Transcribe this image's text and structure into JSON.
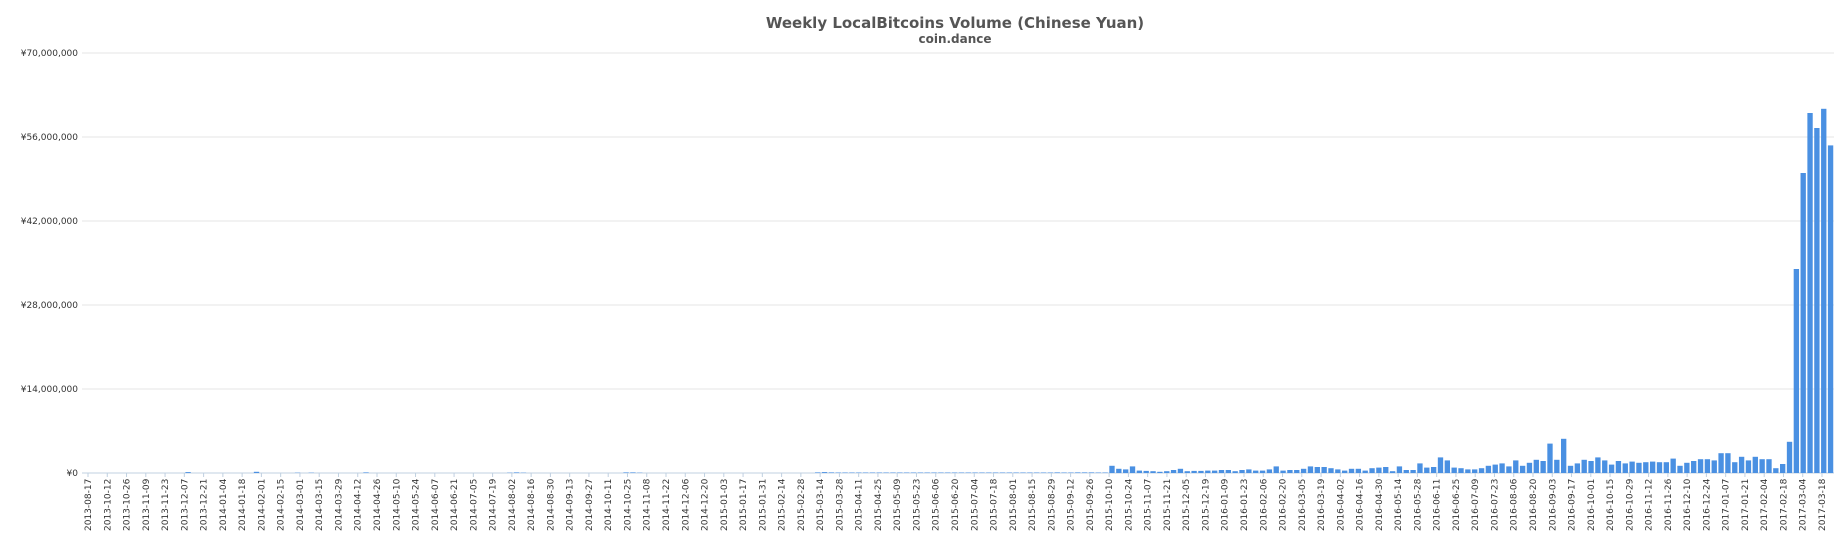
{
  "chart_data": {
    "type": "bar",
    "title": "Weekly LocalBitcoins Volume (Chinese Yuan)",
    "subtitle": "coin.dance",
    "xlabel": "",
    "ylabel": "",
    "ylim": [
      0,
      70000000
    ],
    "y_ticks": [
      0,
      14000000,
      28000000,
      42000000,
      56000000,
      70000000
    ],
    "y_tick_labels": [
      "¥0",
      "¥14,000,000",
      "¥28,000,000",
      "¥42,000,000",
      "¥56,000,000",
      "¥70,000,000"
    ],
    "x_tick_labels": [
      "2013-08-17",
      "2013-10-12",
      "2013-10-26",
      "2013-11-09",
      "2013-11-23",
      "2013-12-07",
      "2013-12-21",
      "2014-01-04",
      "2014-01-18",
      "2014-02-01",
      "2014-02-15",
      "2014-03-01",
      "2014-03-15",
      "2014-03-29",
      "2014-04-12",
      "2014-04-26",
      "2014-05-10",
      "2014-05-24",
      "2014-06-07",
      "2014-06-21",
      "2014-07-05",
      "2014-07-19",
      "2014-08-02",
      "2014-08-16",
      "2014-08-30",
      "2014-09-13",
      "2014-09-27",
      "2014-10-11",
      "2014-10-25",
      "2014-11-08",
      "2014-11-22",
      "2014-12-06",
      "2014-12-20",
      "2015-01-03",
      "2015-01-17",
      "2015-01-31",
      "2015-02-14",
      "2015-02-28",
      "2015-03-14",
      "2015-03-28",
      "2015-04-11",
      "2015-04-25",
      "2015-05-09",
      "2015-05-23",
      "2015-06-06",
      "2015-06-20",
      "2015-07-04",
      "2015-07-18",
      "2015-08-01",
      "2015-08-15",
      "2015-08-29",
      "2015-09-12",
      "2015-09-26",
      "2015-10-10",
      "2015-10-24",
      "2015-11-07",
      "2015-11-21",
      "2015-12-05",
      "2015-12-19",
      "2016-01-09",
      "2016-01-23",
      "2016-02-06",
      "2016-02-20",
      "2016-03-05",
      "2016-03-19",
      "2016-04-02",
      "2016-04-16",
      "2016-04-30",
      "2016-05-14",
      "2016-05-28",
      "2016-06-11",
      "2016-06-25",
      "2016-07-09",
      "2016-07-23",
      "2016-08-06",
      "2016-08-20",
      "2016-09-03",
      "2016-09-17",
      "2016-10-01",
      "2016-10-15",
      "2016-10-29",
      "2016-11-12",
      "2016-11-26",
      "2016-12-10",
      "2016-12-24",
      "2017-01-07",
      "2017-01-21",
      "2017-02-04",
      "2017-02-18",
      "2017-03-04",
      "2017-03-18"
    ],
    "values": [
      0,
      0,
      0,
      0,
      0,
      0,
      0,
      0,
      0,
      0,
      0,
      0,
      0,
      0,
      0,
      150000,
      0,
      0,
      0,
      0,
      0,
      0,
      0,
      0,
      0,
      200000,
      0,
      0,
      0,
      0,
      0,
      50000,
      0,
      50000,
      0,
      0,
      0,
      0,
      0,
      0,
      0,
      100000,
      0,
      0,
      0,
      0,
      0,
      0,
      0,
      0,
      0,
      0,
      0,
      0,
      0,
      0,
      0,
      0,
      0,
      0,
      0,
      0,
      50000,
      100000,
      50000,
      0,
      0,
      0,
      0,
      0,
      0,
      0,
      0,
      0,
      0,
      0,
      0,
      0,
      0,
      100000,
      100000,
      50000,
      0,
      0,
      0,
      0,
      0,
      0,
      0,
      0,
      0,
      0,
      0,
      0,
      0,
      0,
      0,
      0,
      0,
      0,
      0,
      0,
      0,
      0,
      0,
      0,
      0,
      100000,
      150000,
      100000,
      80000,
      80000,
      80000,
      80000,
      80000,
      80000,
      80000,
      80000,
      80000,
      80000,
      80000,
      80000,
      80000,
      80000,
      80000,
      80000,
      80000,
      80000,
      80000,
      80000,
      80000,
      80000,
      80000,
      80000,
      80000,
      80000,
      80000,
      80000,
      80000,
      80000,
      80000,
      80000,
      100000,
      80000,
      80000,
      100000,
      100000,
      100000,
      80000,
      80000,
      1200000,
      700000,
      600000,
      1100000,
      400000,
      350000,
      300000,
      200000,
      300000,
      500000,
      700000,
      300000,
      350000,
      350000,
      400000,
      400000,
      500000,
      500000,
      300000,
      500000,
      600000,
      400000,
      400000,
      600000,
      1100000,
      400000,
      500000,
      500000,
      700000,
      1100000,
      1000000,
      1000000,
      800000,
      600000,
      400000,
      700000,
      700000,
      400000,
      800000,
      900000,
      1000000,
      300000,
      1100000,
      500000,
      500000,
      1600000,
      900000,
      1000000,
      2600000,
      2100000,
      900000,
      800000,
      600000,
      600000,
      800000,
      1200000,
      1400000,
      1600000,
      1100000,
      2100000,
      1200000,
      1700000,
      2200000,
      2000000,
      4900000,
      2200000,
      5700000,
      1200000,
      1600000,
      2200000,
      2000000,
      2600000,
      2100000,
      1400000,
      2000000,
      1600000,
      1900000,
      1700000,
      1800000,
      1900000,
      1800000,
      1800000,
      2400000,
      1200000,
      1700000,
      2000000,
      2300000,
      2300000,
      2100000,
      3300000,
      3300000,
      1800000,
      2700000,
      2100000,
      2700000,
      2300000,
      2300000,
      800000,
      1500000,
      5200000,
      34000000,
      50000000,
      60000000,
      57500000,
      60700000,
      54600000
    ]
  }
}
